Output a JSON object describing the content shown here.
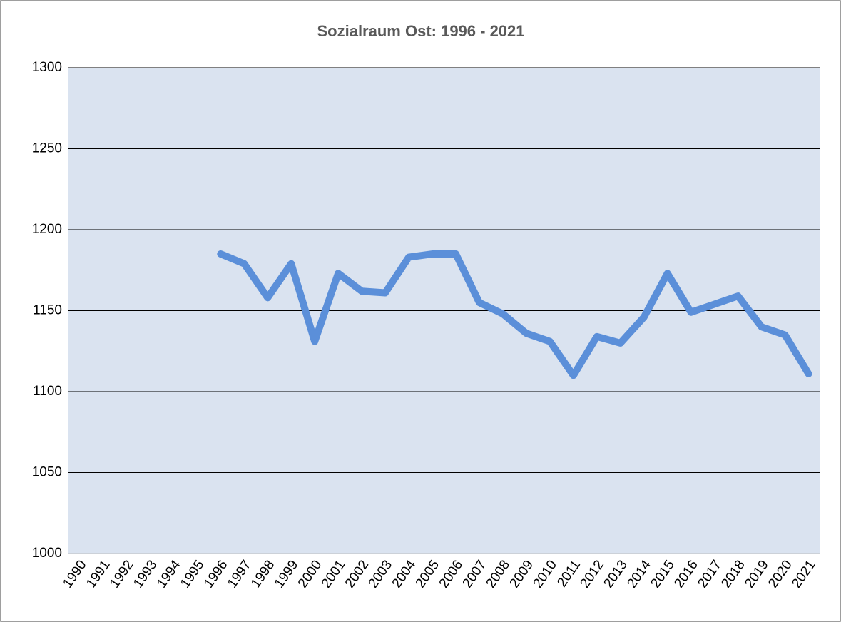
{
  "chart_data": {
    "type": "line",
    "title": "Sozialraum  Ost: 1996 - 2021",
    "categories": [
      "1990",
      "1991",
      "1992",
      "1993",
      "1994",
      "1995",
      "1996",
      "1997",
      "1998",
      "1999",
      "2000",
      "2001",
      "2002",
      "2003",
      "2004",
      "2005",
      "2006",
      "2007",
      "2008",
      "2009",
      "2010",
      "2011",
      "2012",
      "2013",
      "2014",
      "2015",
      "2016",
      "2017",
      "2018",
      "2019",
      "2020",
      "2021"
    ],
    "series": [
      {
        "color": "#5b8fd9",
        "values": [
          null,
          null,
          null,
          null,
          null,
          null,
          1185,
          1179,
          1158,
          1179,
          1131,
          1173,
          1162,
          1161,
          1183,
          1185,
          1185,
          1155,
          1148,
          1136,
          1131,
          1110,
          1134,
          1130,
          1146,
          1173,
          1149,
          1154,
          1159,
          1140,
          1135,
          1111
        ]
      }
    ],
    "ylim": [
      1000,
      1300
    ],
    "yticks": [
      1000,
      1050,
      1100,
      1150,
      1200,
      1250,
      1300
    ],
    "grid": true
  }
}
